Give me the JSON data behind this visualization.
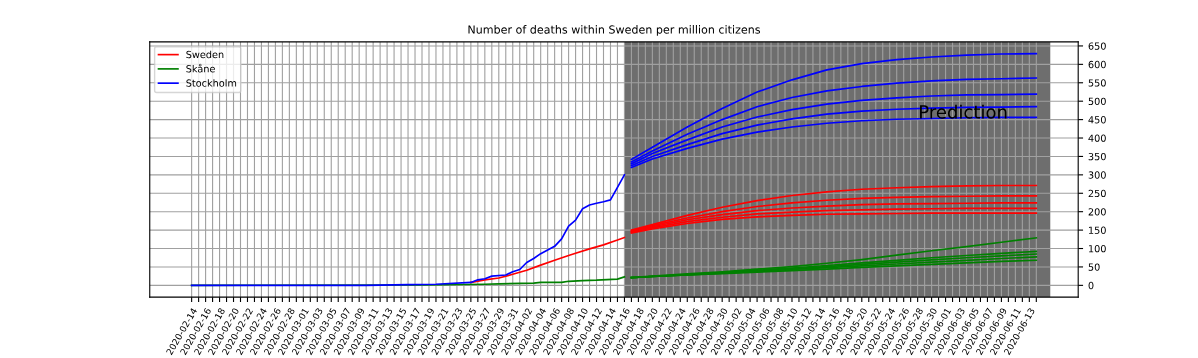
{
  "chart_data": {
    "type": "line",
    "title": "Number of deaths within Sweden per million citizens",
    "xlim": [
      "2020-02-08",
      "2020-06-20"
    ],
    "ylim": [
      -32,
      661
    ],
    "yticks": [
      0,
      50,
      100,
      150,
      200,
      250,
      300,
      350,
      400,
      450,
      500,
      550,
      600,
      650
    ],
    "xticks": [
      "2020-02-14",
      {
        "value": "2020-02-15",
        "label": null
      },
      "2020-02-16",
      {
        "value": "2020-02-17",
        "label": null
      },
      "2020-02-18",
      {
        "value": "2020-02-19",
        "label": null
      },
      "2020-02-20",
      {
        "value": "2020-02-21",
        "label": null
      },
      "2020-02-22",
      {
        "value": "2020-02-23",
        "label": null
      },
      "2020-02-24",
      {
        "value": "2020-02-25",
        "label": null
      },
      "2020-02-26",
      {
        "value": "2020-02-27",
        "label": null
      },
      "2020-02-28",
      {
        "value": "2020-02-29",
        "label": null
      },
      "2020-03-01",
      {
        "value": "2020-03-02",
        "label": null
      },
      "2020-03-03",
      {
        "value": "2020-03-04",
        "label": null
      },
      "2020-03-05",
      {
        "value": "2020-03-06",
        "label": null
      },
      "2020-03-07",
      {
        "value": "2020-03-08",
        "label": null
      },
      "2020-03-09",
      {
        "value": "2020-03-10",
        "label": null
      },
      "2020-03-11",
      {
        "value": "2020-03-12",
        "label": null
      },
      "2020-03-13",
      {
        "value": "2020-03-14",
        "label": null
      },
      "2020-03-15",
      {
        "value": "2020-03-16",
        "label": null
      },
      "2020-03-17",
      {
        "value": "2020-03-18",
        "label": null
      },
      "2020-03-19",
      {
        "value": "2020-03-20",
        "label": null
      },
      "2020-03-21",
      {
        "value": "2020-03-22",
        "label": null
      },
      "2020-03-23",
      {
        "value": "2020-03-24",
        "label": null
      },
      "2020-03-25",
      {
        "value": "2020-03-26",
        "label": null
      },
      "2020-03-27",
      {
        "value": "2020-03-28",
        "label": null
      },
      "2020-03-29",
      {
        "value": "2020-03-30",
        "label": null
      },
      "2020-03-31",
      {
        "value": "2020-04-01",
        "label": null
      },
      "2020-04-02",
      {
        "value": "2020-04-03",
        "label": null
      },
      "2020-04-04",
      {
        "value": "2020-04-05",
        "label": null
      },
      "2020-04-06",
      {
        "value": "2020-04-07",
        "label": null
      },
      "2020-04-08",
      {
        "value": "2020-04-09",
        "label": null
      },
      "2020-04-10",
      {
        "value": "2020-04-11",
        "label": null
      },
      "2020-04-12",
      {
        "value": "2020-04-13",
        "label": null
      },
      "2020-04-14",
      {
        "value": "2020-04-15",
        "label": null
      },
      "2020-04-16",
      {
        "value": "2020-04-17",
        "label": null
      },
      "2020-04-18",
      {
        "value": "2020-04-19",
        "label": null
      },
      "2020-04-20",
      {
        "value": "2020-04-21",
        "label": null
      },
      "2020-04-22",
      {
        "value": "2020-04-23",
        "label": null
      },
      "2020-04-24",
      {
        "value": "2020-04-25",
        "label": null
      },
      "2020-04-26",
      {
        "value": "2020-04-27",
        "label": null
      },
      "2020-04-28",
      {
        "value": "2020-04-29",
        "label": null
      },
      "2020-04-30",
      {
        "value": "2020-05-01",
        "label": null
      },
      "2020-05-02",
      {
        "value": "2020-05-03",
        "label": null
      },
      "2020-05-04",
      {
        "value": "2020-05-05",
        "label": null
      },
      "2020-05-06",
      {
        "value": "2020-05-07",
        "label": null
      },
      "2020-05-08",
      {
        "value": "2020-05-09",
        "label": null
      },
      "2020-05-10",
      {
        "value": "2020-05-11",
        "label": null
      },
      "2020-05-12",
      {
        "value": "2020-05-13",
        "label": null
      },
      "2020-05-14",
      {
        "value": "2020-05-15",
        "label": null
      },
      "2020-05-16",
      {
        "value": "2020-05-17",
        "label": null
      },
      "2020-05-18",
      {
        "value": "2020-05-19",
        "label": null
      },
      "2020-05-20",
      {
        "value": "2020-05-21",
        "label": null
      },
      "2020-05-22",
      {
        "value": "2020-05-23",
        "label": null
      },
      "2020-05-24",
      {
        "value": "2020-05-25",
        "label": null
      },
      "2020-05-26",
      {
        "value": "2020-05-27",
        "label": null
      },
      "2020-05-28",
      {
        "value": "2020-05-29",
        "label": null
      },
      "2020-05-30",
      {
        "value": "2020-05-31",
        "label": null
      },
      "2020-06-01",
      {
        "value": "2020-06-02",
        "label": null
      },
      "2020-06-03",
      {
        "value": "2020-06-04",
        "label": null
      },
      "2020-06-05",
      {
        "value": "2020-06-06",
        "label": null
      },
      "2020-06-07",
      {
        "value": "2020-06-08",
        "label": null
      },
      "2020-06-09",
      {
        "value": "2020-06-10",
        "label": null
      },
      "2020-06-11",
      {
        "value": "2020-06-12",
        "label": null
      },
      "2020-06-13",
      {
        "value": "2020-06-14",
        "label": null
      }
    ],
    "grid": true,
    "legend": "top left",
    "bands": [
      {
        "axis": "x",
        "from": "2020-04-16",
        "to": "2020-06-16",
        "label": "Prediction",
        "color": "#6e6e6e"
      }
    ],
    "x": [
      "2020-04-17",
      "2020-04-20",
      "2020-04-25",
      "2020-04-30",
      "2020-05-05",
      "2020-05-10",
      "2020-05-15",
      "2020-05-20",
      "2020-05-25",
      "2020-05-30",
      "2020-06-04",
      "2020-06-09",
      "2020-06-14"
    ],
    "series": [
      {
        "name": "Sweden",
        "color": "#ff0000",
        "x": [
          "2020-03-25",
          "2020-03-27",
          "2020-03-29",
          "2020-03-31",
          "2020-04-02",
          "2020-04-04",
          "2020-04-06",
          "2020-04-08",
          "2020-04-09",
          "2020-04-11",
          "2020-04-13",
          "2020-04-15",
          "2020-04-16"
        ],
        "values": [
          8,
          15,
          20,
          30,
          41,
          55,
          68,
          81,
          87,
          99,
          110,
          123,
          130
        ]
      },
      {
        "name": "Skåne",
        "color": "#008000",
        "x": [
          "2020-02-14",
          "2020-03-18",
          "2020-03-27",
          "2020-03-29",
          "2020-04-03",
          "2020-04-04",
          "2020-04-07",
          "2020-04-08",
          "2020-04-10",
          "2020-04-12",
          "2020-04-15",
          "2020-04-16"
        ],
        "values": [
          0,
          1,
          3,
          4,
          6,
          8,
          8,
          11,
          13,
          14,
          17,
          23
        ]
      },
      {
        "name": "Stockholm",
        "color": "#0000ff",
        "x": [
          "2020-02-14",
          "2020-03-10",
          "2020-03-16",
          "2020-03-20",
          "2020-03-25",
          "2020-03-26",
          "2020-03-27",
          "2020-03-28",
          "2020-03-30",
          "2020-03-31",
          "2020-04-01",
          "2020-04-02",
          "2020-04-03",
          "2020-04-04",
          "2020-04-05",
          "2020-04-06",
          "2020-04-07",
          "2020-04-08",
          "2020-04-09",
          "2020-04-10",
          "2020-04-11",
          "2020-04-12",
          "2020-04-13",
          "2020-04-14",
          "2020-04-15",
          "2020-04-16"
        ],
        "values": [
          0,
          0,
          2,
          3,
          8,
          15,
          18,
          25,
          28,
          37,
          43,
          62,
          73,
          86,
          96,
          106,
          126,
          161,
          177,
          208,
          218,
          223,
          227,
          232,
          266,
          300
        ]
      },
      {
        "color": "#0000ff",
        "values": [
          342,
          375,
          430,
          480,
          525,
          558,
          585,
          602,
          613,
          620,
          625,
          628,
          629
        ]
      },
      {
        "color": "#0000ff",
        "values": [
          335,
          365,
          410,
          450,
          485,
          510,
          528,
          540,
          549,
          555,
          559,
          561,
          563
        ]
      },
      {
        "color": "#0000ff",
        "values": [
          330,
          358,
          395,
          430,
          457,
          477,
          492,
          502,
          509,
          514,
          517,
          518,
          519
        ]
      },
      {
        "color": "#0000ff",
        "values": [
          325,
          350,
          382,
          412,
          435,
          452,
          465,
          473,
          478,
          481,
          483,
          484,
          485
        ]
      },
      {
        "color": "#0000ff",
        "values": [
          320,
          343,
          372,
          397,
          416,
          430,
          440,
          447,
          451,
          453,
          455,
          456,
          456
        ]
      },
      {
        "color": "#ff0000",
        "values": [
          150,
          165,
          190,
          212,
          230,
          244,
          254,
          261,
          265,
          268,
          270,
          271,
          271
        ]
      },
      {
        "color": "#ff0000",
        "values": [
          148,
          162,
          183,
          200,
          214,
          224,
          231,
          236,
          239,
          241,
          242,
          243,
          243
        ]
      },
      {
        "color": "#ff0000",
        "values": [
          146,
          159,
          178,
          192,
          203,
          210,
          215,
          219,
          221,
          222,
          223,
          224,
          224
        ]
      },
      {
        "color": "#ff0000",
        "values": [
          144,
          156,
          173,
          185,
          194,
          199,
          203,
          205,
          207,
          208,
          209,
          209,
          209
        ]
      },
      {
        "color": "#ff0000",
        "values": [
          142,
          153,
          168,
          179,
          186,
          190,
          193,
          194,
          195,
          196,
          196,
          196,
          196
        ]
      },
      {
        "color": "#008000",
        "values": [
          21,
          25,
          31,
          37,
          44,
          51,
          60,
          70,
          82,
          94,
          105,
          117,
          129
        ]
      },
      {
        "color": "#008000",
        "values": [
          21,
          24,
          29,
          35,
          41,
          47,
          54,
          61,
          68,
          75,
          81,
          87,
          92
        ]
      },
      {
        "color": "#008000",
        "values": [
          21,
          24,
          29,
          34,
          40,
          45,
          51,
          57,
          63,
          69,
          75,
          80,
          85
        ]
      },
      {
        "color": "#008000",
        "values": [
          21,
          24,
          28,
          33,
          38,
          43,
          48,
          53,
          58,
          63,
          68,
          73,
          77
        ]
      },
      {
        "color": "#008000",
        "values": [
          21,
          24,
          28,
          32,
          36,
          40,
          44,
          49,
          53,
          57,
          61,
          65,
          68
        ]
      }
    ]
  }
}
